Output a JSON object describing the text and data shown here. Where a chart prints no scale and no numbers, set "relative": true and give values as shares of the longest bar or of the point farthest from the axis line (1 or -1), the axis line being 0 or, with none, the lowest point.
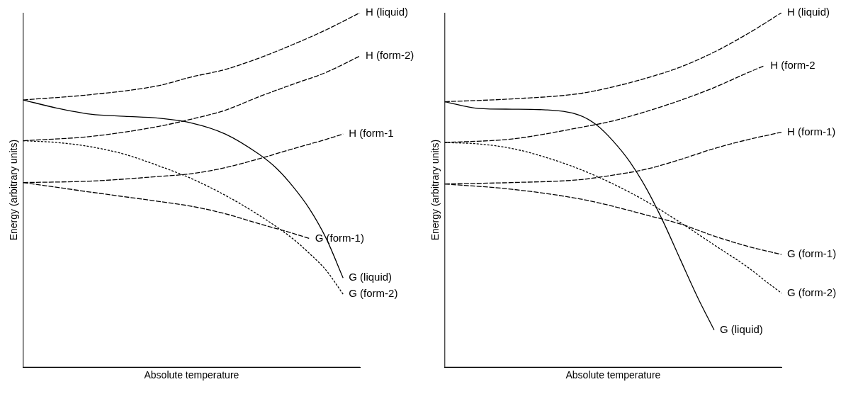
{
  "chart_data": [
    {
      "type": "line",
      "relative": true,
      "xlabel": "Absolute temperature",
      "ylabel": "Energy (arbitrary units)",
      "categories": [
        null,
        null,
        null,
        null,
        null,
        null,
        null,
        null,
        null,
        null,
        null,
        null,
        null,
        null,
        null,
        null,
        null,
        null,
        null,
        null,
        null
      ],
      "legend": false,
      "grid": false,
      "marker": "none",
      "series": [
        {
          "name": "H (liquid)",
          "color": "#000000",
          "line_style": "dashed",
          "values": [
            0.754,
            null,
            null,
            null,
            0.769,
            null,
            null,
            null,
            0.794,
            null,
            0.819,
            null,
            0.84,
            null,
            0.872,
            null,
            0.91,
            null,
            0.952,
            null,
            1
          ]
        },
        {
          "name": "H (form-2)",
          "color": "#000000",
          "line_style": "dashed",
          "values": [
            0.639,
            null,
            null,
            null,
            0.651,
            null,
            null,
            null,
            0.679,
            null,
            0.7,
            null,
            0.725,
            null,
            0.763,
            null,
            0.798,
            null,
            0.832,
            null,
            0.878
          ]
        },
        {
          "name": "H (form-1",
          "color": "#000000",
          "line_style": "dashed",
          "values": [
            0.521,
            null,
            null,
            null,
            0.525,
            null,
            null,
            null,
            0.538,
            null,
            0.546,
            null,
            0.563,
            null,
            0.588,
            null,
            0.616,
            null,
            0.643,
            0.658,
            null
          ]
        },
        {
          "name": "G (form-1)",
          "color": "#000000",
          "line_style": "dashed",
          "values": [
            0.521,
            null,
            null,
            null,
            0.494,
            null,
            null,
            null,
            0.468,
            null,
            0.454,
            null,
            0.433,
            null,
            0.405,
            null,
            0.378,
            0.363,
            null,
            null,
            null
          ]
        },
        {
          "name": "G (liquid)",
          "color": "#000000",
          "line_style": "solid",
          "values": [
            0.754,
            null,
            0.731,
            null,
            0.714,
            null,
            0.708,
            null,
            0.703,
            null,
            0.689,
            null,
            0.658,
            null,
            0.601,
            0.563,
            0.511,
            0.447,
            0.363,
            0.252,
            null
          ]
        },
        {
          "name": "G (form-2)",
          "color": "#000000",
          "line_style": "dotted",
          "values": [
            0.639,
            null,
            0.634,
            null,
            0.622,
            null,
            0.601,
            null,
            0.569,
            null,
            0.532,
            null,
            0.485,
            null,
            0.429,
            null,
            0.363,
            0.321,
            0.273,
            0.206,
            null
          ]
        }
      ]
    },
    {
      "type": "line",
      "relative": true,
      "xlabel": "Absolute temperature",
      "ylabel": "Energy (arbitrary units)",
      "categories": [
        null,
        null,
        null,
        null,
        null,
        null,
        null,
        null,
        null,
        null,
        null,
        null,
        null,
        null,
        null,
        null,
        null,
        null,
        null,
        null,
        null
      ],
      "legend": false,
      "grid": false,
      "marker": "none",
      "series": [
        {
          "name": "H (liquid)",
          "color": "#000000",
          "line_style": "dashed",
          "values": [
            0.749,
            null,
            null,
            null,
            0.757,
            null,
            null,
            null,
            0.772,
            null,
            0.791,
            null,
            0.816,
            null,
            0.847,
            null,
            0.889,
            null,
            0.941,
            null,
            1
          ]
        },
        {
          "name": "H (form-2",
          "color": "#000000",
          "line_style": "dashed",
          "values": [
            0.634,
            null,
            null,
            null,
            0.644,
            null,
            null,
            null,
            0.676,
            null,
            0.695,
            null,
            0.722,
            null,
            0.753,
            null,
            0.789,
            null,
            0.831,
            0.851,
            null
          ]
        },
        {
          "name": "H (form-1)",
          "color": "#000000",
          "line_style": "dashed",
          "values": [
            0.517,
            null,
            null,
            null,
            0.521,
            null,
            null,
            null,
            0.529,
            null,
            0.542,
            null,
            0.559,
            null,
            0.586,
            null,
            0.617,
            null,
            0.642,
            null,
            0.663
          ]
        },
        {
          "name": "G (form-1)",
          "color": "#000000",
          "line_style": "dashed",
          "values": [
            0.517,
            null,
            null,
            null,
            0.502,
            null,
            null,
            null,
            0.475,
            null,
            0.454,
            null,
            0.429,
            null,
            0.404,
            null,
            0.37,
            null,
            0.341,
            null,
            0.318
          ]
        },
        {
          "name": "G (form-2)",
          "color": "#000000",
          "line_style": "dotted",
          "values": [
            0.634,
            null,
            0.63,
            null,
            0.617,
            null,
            0.592,
            null,
            0.559,
            null,
            0.517,
            null,
            0.467,
            null,
            0.408,
            null,
            0.345,
            null,
            0.282,
            0.245,
            0.209
          ]
        },
        {
          "name": "G (liquid)",
          "color": "#000000",
          "line_style": "solid",
          "values": [
            0.749,
            null,
            0.73,
            null,
            0.728,
            null,
            0.726,
            null,
            0.711,
            0.684,
            0.638,
            0.579,
            0.502,
            0.408,
            0.303,
            0.199,
            0.105,
            null,
            null,
            null,
            null
          ]
        }
      ]
    }
  ]
}
